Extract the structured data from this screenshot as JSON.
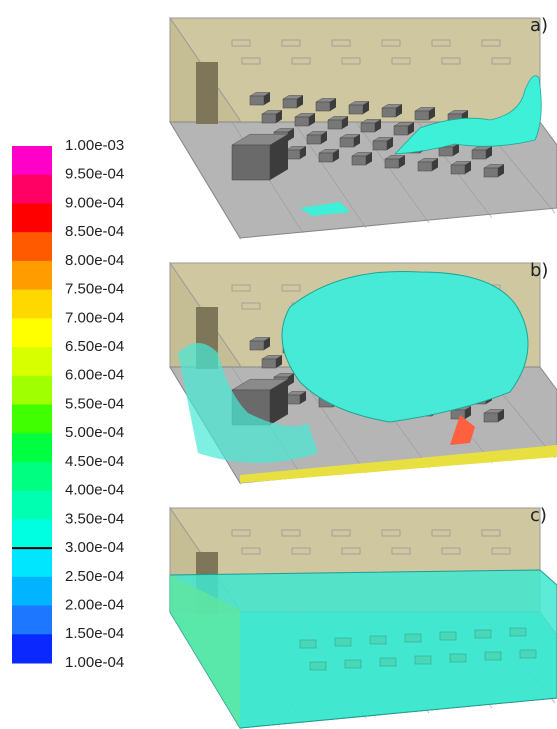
{
  "colorbar": {
    "ticks": [
      {
        "value": 0.001,
        "label": "1.00e-03"
      },
      {
        "value": 0.00095,
        "label": "9.50e-04"
      },
      {
        "value": 0.0009,
        "label": "9.00e-04"
      },
      {
        "value": 0.00085,
        "label": "8.50e-04"
      },
      {
        "value": 0.0008,
        "label": "8.00e-04"
      },
      {
        "value": 0.00075,
        "label": "7.50e-04"
      },
      {
        "value": 0.0007,
        "label": "7.00e-04"
      },
      {
        "value": 0.00065,
        "label": "6.50e-04"
      },
      {
        "value": 0.0006,
        "label": "6.00e-04"
      },
      {
        "value": 0.00055,
        "label": "5.50e-04"
      },
      {
        "value": 0.0005,
        "label": "5.00e-04"
      },
      {
        "value": 0.00045,
        "label": "4.50e-04"
      },
      {
        "value": 0.0004,
        "label": "4.00e-04"
      },
      {
        "value": 0.00035,
        "label": "3.50e-04"
      },
      {
        "value": 0.0003,
        "label": "3.00e-04"
      },
      {
        "value": 0.00025,
        "label": "2.50e-04"
      },
      {
        "value": 0.0002,
        "label": "2.00e-04"
      },
      {
        "value": 0.00015,
        "label": "1.50e-04"
      },
      {
        "value": 0.0001,
        "label": "1.00e-04"
      }
    ],
    "colors": [
      "#ff00c8",
      "#ff0064",
      "#ff0000",
      "#ff5a00",
      "#ff9c00",
      "#ffd800",
      "#ffff00",
      "#d8ff00",
      "#a0ff00",
      "#40ff00",
      "#00ff40",
      "#00ff80",
      "#00ffb0",
      "#00ffe0",
      "#00e6ff",
      "#00b4ff",
      "#1e78ff",
      "#0a28ff"
    ],
    "iso_value": 0.0003
  },
  "panels": [
    {
      "label": "a)"
    },
    {
      "label": "b)"
    },
    {
      "label": "c)"
    }
  ]
}
